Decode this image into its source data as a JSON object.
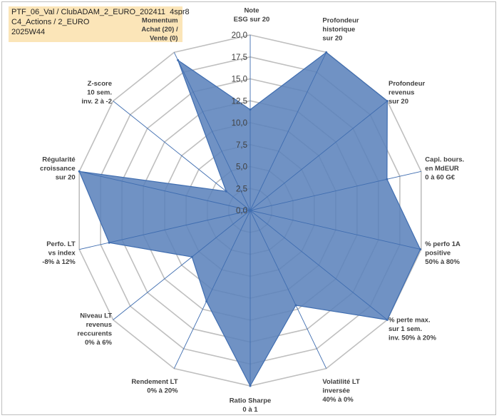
{
  "header": {
    "line1": "PTF_06_Val / ClubADAM_2_EURO_202411_4spr8",
    "line2": "C4_Actions / 2_EURO",
    "line3": "2025W44"
  },
  "chart_data": {
    "type": "radar",
    "rmin": 0,
    "rmax": 20,
    "ticks": [
      "0,0",
      "2,5",
      "5,0",
      "7,5",
      "10,0",
      "12,5",
      "15,0",
      "17,5",
      "20,0"
    ],
    "grid": true,
    "colors": {
      "fill": "#5b82bb",
      "stroke": "#3f6db0",
      "grid": "#bfbfbf",
      "highlight": "#fbe5b8"
    },
    "axes": [
      {
        "label": [
          "Note",
          "ESG sur 20"
        ],
        "value": 11.5
      },
      {
        "label": [
          "Profondeur",
          "historique",
          "sur 20"
        ],
        "value": 20.0
      },
      {
        "label": [
          "Profondeur",
          "revenus",
          "sur 20"
        ],
        "value": 20.0
      },
      {
        "label": [
          "Capi. bours.",
          "en MdEUR",
          "0 à 60 G€"
        ],
        "value": 16.0
      },
      {
        "label": [
          "% perfo 1A",
          "positive",
          "50% à 80%"
        ],
        "value": 19.9
      },
      {
        "label": [
          "% perte max.",
          "sur 1 sem.",
          "inv. 50% à 20%"
        ],
        "value": 20.0
      },
      {
        "label": [
          "Volatilité LT",
          "inversée",
          "40% à 0%"
        ],
        "value": 12.0
      },
      {
        "label": [
          "Ratio Sharpe",
          "0 à 1"
        ],
        "value": 20.0
      },
      {
        "label": [
          "Rendement LT",
          "0% à 20%"
        ],
        "value": 11.5
      },
      {
        "label": [
          "Niveau LT",
          "revenus",
          "reccurents",
          "0% à 6%"
        ],
        "value": 8.5
      },
      {
        "label": [
          "Perfo. LT",
          "vs index",
          "-8% à 12%"
        ],
        "value": 16.5
      },
      {
        "label": [
          "Régularité",
          "croissance",
          "sur 20"
        ],
        "value": 20.0
      },
      {
        "label": [
          "Z-score",
          "10 sem.",
          "inv. 2 à -2"
        ],
        "value": 3.5
      },
      {
        "label": [
          "Momentum",
          "Achat (20) /",
          "Vente (0)"
        ],
        "value": 19.0,
        "highlight_first_line": true
      }
    ]
  }
}
